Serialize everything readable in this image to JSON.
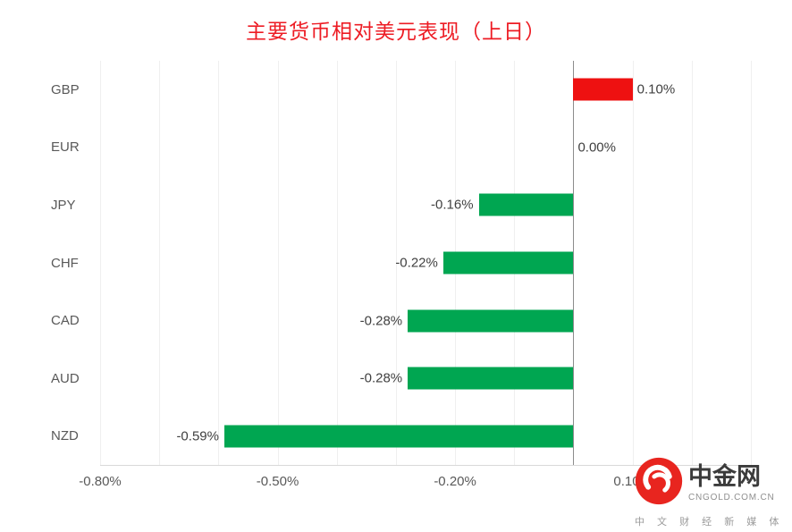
{
  "title": "主要货币相对美元表现（上日）",
  "title_color": "#ed1c24",
  "chart_data": {
    "type": "bar",
    "orientation": "horizontal",
    "categories": [
      "GBP",
      "EUR",
      "JPY",
      "CHF",
      "CAD",
      "AUD",
      "NZD"
    ],
    "values": [
      0.1,
      0.0,
      -0.16,
      -0.22,
      -0.28,
      -0.28,
      -0.59
    ],
    "value_labels": [
      "0.10%",
      "0.00%",
      "-0.16%",
      "-0.22%",
      "-0.28%",
      "-0.28%",
      "-0.59%"
    ],
    "xlabel": "",
    "ylabel": "",
    "xlim": [
      -0.8,
      0.3
    ],
    "grid": true,
    "grid_step": 0.1,
    "x_ticks": [
      {
        "value": -0.8,
        "label": "-0.80%"
      },
      {
        "value": -0.5,
        "label": "-0.50%"
      },
      {
        "value": -0.2,
        "label": "-0.20%"
      },
      {
        "value": 0.1,
        "label": "0.10%"
      }
    ],
    "positive_color": "#ee1111",
    "negative_color": "#00a651",
    "legend_position": "none"
  },
  "watermark": {
    "brand": "中金网",
    "domain": "CNGOLD.COM.CN",
    "tagline": "中 文 财 经 新 媒 体",
    "logo_color": "#e8251f"
  }
}
